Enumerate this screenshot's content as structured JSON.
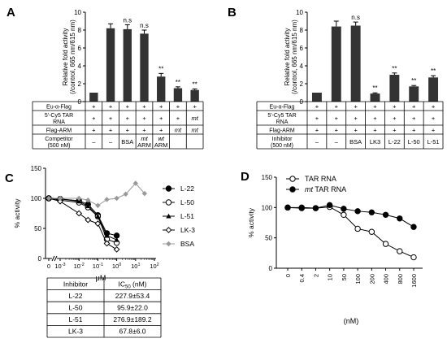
{
  "panels": {
    "A": {
      "letter": "A"
    },
    "B": {
      "letter": "B"
    },
    "C": {
      "letter": "C"
    },
    "D": {
      "letter": "D"
    }
  },
  "chart_data": [
    {
      "id": "A",
      "type": "bar",
      "ylabel_line1": "Relative fold activity",
      "ylabel_line2": "(/control, 665 nm/615 nm)",
      "ylim": [
        0,
        10
      ],
      "yticks": [
        0,
        2,
        4,
        6,
        8,
        10
      ],
      "values": [
        1.0,
        8.2,
        8.1,
        7.6,
        2.8,
        1.5,
        1.3
      ],
      "errors": [
        0.05,
        0.5,
        0.5,
        0.4,
        0.35,
        0.15,
        0.12
      ],
      "annotations": [
        "",
        "",
        "n.s",
        "n.s",
        "**",
        "**",
        "**"
      ],
      "color": "#333333",
      "table": [
        {
          "label": [
            "Eu-α-Flag"
          ],
          "cells": [
            "+",
            "+",
            "+",
            "+",
            "+",
            "+",
            "+"
          ]
        },
        {
          "label": [
            "5'-Cy5 TAR",
            "RNA"
          ],
          "cells": [
            "+",
            "+",
            "+",
            "+",
            "+",
            "+",
            "mt"
          ]
        },
        {
          "label": [
            "Flag-ARM"
          ],
          "cells": [
            "+",
            "+",
            "+",
            "+",
            "+",
            "mt",
            "mt"
          ]
        },
        {
          "label": [
            "Competitor",
            "(500 nM)"
          ],
          "cells": [
            [
              "–"
            ],
            [
              "–"
            ],
            [
              "BSA"
            ],
            [
              "mt",
              "ARM"
            ],
            [
              "wt",
              "ARM"
            ],
            [
              ""
            ],
            [
              ""
            ]
          ]
        }
      ]
    },
    {
      "id": "B",
      "type": "bar",
      "ylabel_line1": "Relative fold activity",
      "ylabel_line2": "(/control, 665 nm/615 nm)",
      "ylim": [
        0,
        10
      ],
      "yticks": [
        0,
        2,
        4,
        6,
        8,
        10
      ],
      "values": [
        1.0,
        8.4,
        8.5,
        0.9,
        3.0,
        1.7,
        2.7
      ],
      "errors": [
        0.05,
        0.6,
        0.4,
        0.08,
        0.2,
        0.1,
        0.2
      ],
      "annotations": [
        "",
        "",
        "n.s",
        "**",
        "**",
        "**",
        "**"
      ],
      "color": "#333333",
      "table": [
        {
          "label": [
            "Eu-α-Flag"
          ],
          "cells": [
            "+",
            "+",
            "+",
            "+",
            "+",
            "+",
            "+"
          ]
        },
        {
          "label": [
            "5'-Cy5 TAR",
            "RNA"
          ],
          "cells": [
            "+",
            "+",
            "+",
            "+",
            "+",
            "+",
            "+"
          ]
        },
        {
          "label": [
            "Flag-ARM"
          ],
          "cells": [
            "+",
            "+",
            "+",
            "+",
            "+",
            "+",
            "+"
          ]
        },
        {
          "label": [
            "Inhibitor",
            "(500 nM)"
          ],
          "cells": [
            [
              "–"
            ],
            [
              "–"
            ],
            [
              "BSA"
            ],
            [
              "LK3"
            ],
            [
              "L-22"
            ],
            [
              "L-50"
            ],
            [
              "L-51"
            ]
          ]
        }
      ]
    },
    {
      "id": "C",
      "type": "line",
      "xlabel": "μM",
      "ylabel": "% activity",
      "xscale": "log",
      "x": [
        0,
        0.001,
        0.01,
        0.03,
        0.1,
        0.3,
        1,
        3,
        10,
        30,
        100
      ],
      "ylim": [
        0,
        150
      ],
      "yticks": [
        0,
        50,
        100,
        150
      ],
      "legend_position": "right",
      "series": [
        {
          "name": "L-22",
          "marker": "filled-circle",
          "color": "#000000",
          "values": [
            100,
            99,
            96,
            90,
            72,
            42,
            38,
            null,
            null,
            null,
            null
          ]
        },
        {
          "name": "L-50",
          "marker": "open-circle",
          "color": "#000000",
          "values": [
            100,
            97,
            93,
            85,
            70,
            32,
            26,
            null,
            null,
            null,
            null
          ]
        },
        {
          "name": "L-51",
          "marker": "filled-triangle",
          "color": "#000000",
          "values": [
            101,
            99,
            95,
            87,
            70,
            38,
            31,
            null,
            null,
            null,
            null
          ]
        },
        {
          "name": "LK-3",
          "marker": "open-diamond",
          "color": "#000000",
          "values": [
            100,
            95,
            75,
            64,
            58,
            25,
            15,
            null,
            null,
            null,
            null
          ]
        },
        {
          "name": "BSA",
          "marker": "filled-diamond",
          "color": "#999999",
          "values": [
            100,
            100,
            100,
            97,
            88,
            98,
            100,
            107,
            125,
            108,
            null
          ]
        }
      ],
      "ic50_table": {
        "headers": [
          "Inhibitor",
          "IC50 (nM)"
        ],
        "rows": [
          [
            "L-22",
            "227.9±53.4"
          ],
          [
            "L-50",
            "95.9±22.0"
          ],
          [
            "L-51",
            "276.9±189.2"
          ],
          [
            "LK-3",
            "67.8±6.0"
          ]
        ]
      }
    },
    {
      "id": "D",
      "type": "line",
      "xlabel": "(nM)",
      "ylabel": "% activity",
      "categories": [
        "0",
        "0.4",
        "2",
        "10",
        "50",
        "100",
        "200",
        "400",
        "800",
        "1600"
      ],
      "ylim": [
        0,
        150
      ],
      "yticks": [
        0,
        50,
        100,
        150
      ],
      "legend_position": "top-right",
      "series": [
        {
          "name": "TAR RNA",
          "marker": "open-circle",
          "color": "#000000",
          "values": [
            100,
            99,
            99,
            101,
            88,
            65,
            60,
            40,
            28,
            18
          ]
        },
        {
          "name": "mt TAR RNA",
          "marker": "filled-circle",
          "color": "#000000",
          "values": [
            100,
            100,
            99,
            104,
            98,
            94,
            92,
            88,
            82,
            68
          ]
        }
      ]
    }
  ]
}
